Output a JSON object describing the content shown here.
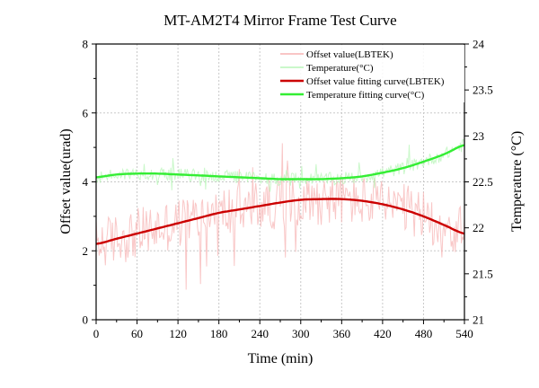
{
  "chart_data": {
    "type": "line",
    "title": "MT-AM2T4 Mirror Frame Test Curve",
    "xlabel": "Time (min)",
    "ylabel_left": "Offset value(urad)",
    "ylabel_right": "Temperature (°C)",
    "xlim": [
      0,
      540
    ],
    "ylim_left": [
      0,
      8
    ],
    "ylim_right": [
      21,
      24
    ],
    "x_ticks": [
      "0",
      "60",
      "120",
      "180",
      "240",
      "300",
      "360",
      "420",
      "480",
      "540"
    ],
    "y_left_ticks": [
      "0",
      "2",
      "4",
      "6",
      "8"
    ],
    "y_right_ticks": [
      "21",
      "21.5",
      "22",
      "22.5",
      "23",
      "23.5",
      "24"
    ],
    "grid": true,
    "legend_position": "top-right",
    "legend": [
      "Offset value(LBTEK)",
      "Temperature(°C)",
      "Offset value fitting curve(LBTEK)",
      "Temperature fitting curve(°C)"
    ],
    "series": [
      {
        "name": "Offset value(LBTEK)",
        "axis": "left",
        "style": "noisy",
        "color": "#f7b4b4",
        "x": [
          0,
          30,
          60,
          90,
          120,
          150,
          180,
          210,
          240,
          270,
          300,
          330,
          360,
          390,
          420,
          450,
          480,
          510,
          540
        ],
        "y": [
          2.2,
          2.35,
          2.5,
          2.65,
          2.8,
          2.95,
          3.1,
          3.2,
          3.3,
          3.4,
          3.48,
          3.5,
          3.5,
          3.45,
          3.35,
          3.2,
          3.0,
          2.75,
          2.5
        ]
      },
      {
        "name": "Temperature(°C)",
        "axis": "right",
        "style": "noisy",
        "color": "#b8f5b8",
        "x": [
          0,
          30,
          60,
          90,
          120,
          150,
          180,
          210,
          240,
          270,
          300,
          330,
          360,
          390,
          420,
          450,
          480,
          510,
          540
        ],
        "y": [
          22.55,
          22.58,
          22.59,
          22.59,
          22.58,
          22.57,
          22.56,
          22.55,
          22.54,
          22.53,
          22.53,
          22.53,
          22.54,
          22.56,
          22.6,
          22.65,
          22.72,
          22.8,
          22.9
        ]
      },
      {
        "name": "Offset value fitting curve(LBTEK)",
        "axis": "left",
        "style": "fit",
        "color": "#cc0000",
        "x": [
          0,
          30,
          60,
          90,
          120,
          150,
          180,
          210,
          240,
          270,
          300,
          330,
          360,
          390,
          420,
          450,
          480,
          510,
          540
        ],
        "y": [
          2.2,
          2.35,
          2.5,
          2.65,
          2.8,
          2.95,
          3.1,
          3.2,
          3.3,
          3.4,
          3.48,
          3.5,
          3.5,
          3.45,
          3.35,
          3.2,
          3.0,
          2.75,
          2.5
        ]
      },
      {
        "name": "Temperature fitting curve(°C)",
        "axis": "right",
        "style": "fit",
        "color": "#33ee33",
        "x": [
          0,
          30,
          60,
          90,
          120,
          150,
          180,
          210,
          240,
          270,
          300,
          330,
          360,
          390,
          420,
          450,
          480,
          510,
          540
        ],
        "y": [
          22.55,
          22.58,
          22.59,
          22.59,
          22.58,
          22.57,
          22.56,
          22.55,
          22.54,
          22.53,
          22.53,
          22.53,
          22.54,
          22.56,
          22.6,
          22.65,
          22.72,
          22.8,
          22.9
        ]
      }
    ]
  }
}
